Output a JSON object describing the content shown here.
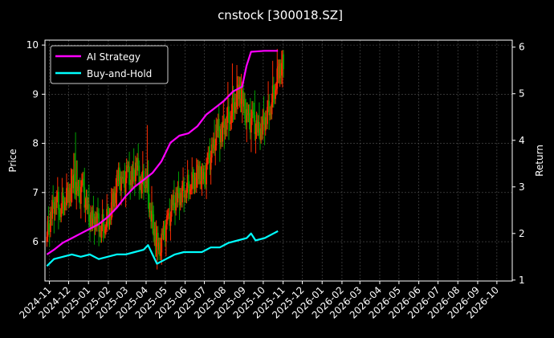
{
  "chart_data": {
    "type": "line",
    "title": "cnstock [300018.SZ]",
    "xlabel": "",
    "ylabel": "Price",
    "y2label": "Return",
    "x_ticks": [
      "2024-11",
      "2024-12",
      "2025-01",
      "2025-02",
      "2025-03",
      "2025-04",
      "2025-05",
      "2025-06",
      "2025-07",
      "2025-08",
      "2025-09",
      "2025-10",
      "2025-11",
      "2025-12",
      "2026-01",
      "2026-02",
      "2026-03",
      "2026-04",
      "2026-05",
      "2026-06",
      "2026-07",
      "2026-08",
      "2026-09",
      "2026-10"
    ],
    "xlim": [
      "2024-10-25",
      "2026-10-25"
    ],
    "ylim": [
      5.2,
      10.1
    ],
    "y_ticks": [
      6,
      7,
      8,
      9,
      10
    ],
    "y2lim": [
      0.98,
      6.15
    ],
    "y2_ticks": [
      1,
      2,
      3,
      4,
      5,
      6
    ],
    "grid": true,
    "legend_position": "top-left",
    "colors": {
      "background": "#000000",
      "ai_strategy": "#ff00ff",
      "buy_and_hold": "#00ffff",
      "candle_up": "#ff2a00",
      "candle_down": "#00a000",
      "grid": "#555555",
      "text": "#ffffff"
    },
    "price_candles": {
      "description_key": "Daily OHLC candlestick price series (Price axis)",
      "dates": [
        "2024-10-28",
        "2024-11-04",
        "2024-11-11",
        "2024-11-18",
        "2024-11-25",
        "2024-12-02",
        "2024-12-09",
        "2024-12-16",
        "2024-12-23",
        "2024-12-30",
        "2025-01-06",
        "2025-01-13",
        "2025-01-20",
        "2025-01-27",
        "2025-02-03",
        "2025-02-10",
        "2025-02-17",
        "2025-02-24",
        "2025-03-03",
        "2025-03-10",
        "2025-03-17",
        "2025-03-24",
        "2025-03-31",
        "2025-04-07",
        "2025-04-14",
        "2025-04-21",
        "2025-04-28",
        "2025-05-05",
        "2025-05-12",
        "2025-05-19",
        "2025-05-26",
        "2025-06-02",
        "2025-06-09",
        "2025-06-16",
        "2025-06-23",
        "2025-06-30",
        "2025-07-07",
        "2025-07-14",
        "2025-07-21",
        "2025-07-28",
        "2025-08-04",
        "2025-08-11",
        "2025-08-18",
        "2025-08-25",
        "2025-09-01",
        "2025-09-08",
        "2025-09-15",
        "2025-09-22",
        "2025-09-29",
        "2025-10-06",
        "2025-10-13",
        "2025-10-20",
        "2025-10-27"
      ],
      "close": [
        6.1,
        6.6,
        6.9,
        6.7,
        6.9,
        7.0,
        7.2,
        6.9,
        7.1,
        6.6,
        6.4,
        6.5,
        6.3,
        6.4,
        6.6,
        6.9,
        7.3,
        7.1,
        7.4,
        7.2,
        7.6,
        7.2,
        7.3,
        6.7,
        6.2,
        5.8,
        6.1,
        6.4,
        6.7,
        6.9,
        7.0,
        7.1,
        7.2,
        7.3,
        7.4,
        7.2,
        7.6,
        7.8,
        8.3,
        8.2,
        8.5,
        8.6,
        8.9,
        9.1,
        8.7,
        8.4,
        8.5,
        8.2,
        8.3,
        8.6,
        8.8,
        9.2,
        9.6
      ],
      "high": [
        6.4,
        6.9,
        7.2,
        7.0,
        7.2,
        7.4,
        8.45,
        7.3,
        7.5,
        7.0,
        6.7,
        6.8,
        6.6,
        6.7,
        6.9,
        7.2,
        7.6,
        7.5,
        7.7,
        7.6,
        7.9,
        7.6,
        8.4,
        7.2,
        6.6,
        6.1,
        6.4,
        6.7,
        7.0,
        7.2,
        7.3,
        7.4,
        7.5,
        7.6,
        7.7,
        7.6,
        8.0,
        8.2,
        8.6,
        8.6,
        9.0,
        9.3,
        9.4,
        9.6,
        9.1,
        8.9,
        9.0,
        8.6,
        8.7,
        9.0,
        9.3,
        9.6,
        9.85
      ],
      "low": [
        5.8,
        6.2,
        6.5,
        6.4,
        6.6,
        6.7,
        6.9,
        6.6,
        6.8,
        6.3,
        6.1,
        6.2,
        6.0,
        6.1,
        6.3,
        6.6,
        7.0,
        6.8,
        7.1,
        6.9,
        7.3,
        6.9,
        7.0,
        6.3,
        5.6,
        5.55,
        5.8,
        6.1,
        6.4,
        6.6,
        6.7,
        6.8,
        6.9,
        7.0,
        7.1,
        6.9,
        7.3,
        7.5,
        7.9,
        7.9,
        8.1,
        8.2,
        8.5,
        8.6,
        8.3,
        8.0,
        8.1,
        8.0,
        8.0,
        8.3,
        8.5,
        8.9,
        9.1
      ]
    },
    "series": [
      {
        "name": "AI Strategy",
        "dates": [
          "2024-10-28",
          "2024-11-08",
          "2024-11-22",
          "2024-12-06",
          "2024-12-20",
          "2025-01-03",
          "2025-01-17",
          "2025-01-31",
          "2025-02-14",
          "2025-02-28",
          "2025-03-14",
          "2025-03-28",
          "2025-04-11",
          "2025-04-25",
          "2025-05-09",
          "2025-05-23",
          "2025-06-06",
          "2025-06-20",
          "2025-07-04",
          "2025-07-18",
          "2025-08-01",
          "2025-08-15",
          "2025-08-29",
          "2025-09-05",
          "2025-09-12",
          "2025-10-03",
          "2025-10-17",
          "2025-10-24"
        ],
        "values": [
          1.55,
          1.65,
          1.8,
          1.9,
          2.0,
          2.1,
          2.2,
          2.35,
          2.55,
          2.8,
          3.0,
          3.15,
          3.3,
          3.55,
          3.95,
          4.1,
          4.15,
          4.3,
          4.55,
          4.7,
          4.85,
          5.05,
          5.15,
          5.6,
          5.9,
          5.92,
          5.92,
          5.92
        ]
      },
      {
        "name": "Buy-and-Hold",
        "dates": [
          "2024-10-28",
          "2024-11-08",
          "2024-11-22",
          "2024-12-06",
          "2024-12-20",
          "2025-01-03",
          "2025-01-17",
          "2025-01-31",
          "2025-02-14",
          "2025-02-28",
          "2025-03-14",
          "2025-03-28",
          "2025-04-04",
          "2025-04-11",
          "2025-04-18",
          "2025-05-02",
          "2025-05-16",
          "2025-05-30",
          "2025-06-13",
          "2025-06-27",
          "2025-07-11",
          "2025-07-25",
          "2025-08-08",
          "2025-08-22",
          "2025-09-05",
          "2025-09-12",
          "2025-09-19",
          "2025-10-03",
          "2025-10-17",
          "2025-10-24"
        ],
        "values": [
          1.3,
          1.45,
          1.5,
          1.55,
          1.5,
          1.55,
          1.45,
          1.5,
          1.55,
          1.55,
          1.6,
          1.65,
          1.75,
          1.55,
          1.35,
          1.45,
          1.55,
          1.6,
          1.6,
          1.6,
          1.7,
          1.7,
          1.8,
          1.85,
          1.9,
          2.0,
          1.85,
          1.9,
          2.0,
          2.05
        ]
      }
    ]
  }
}
